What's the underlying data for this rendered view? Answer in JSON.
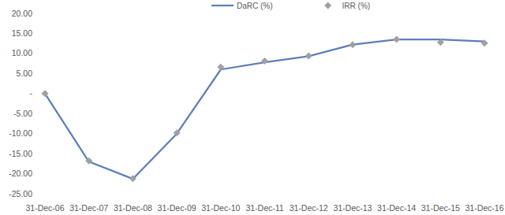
{
  "chart_data": {
    "type": "line",
    "categories": [
      "31-Dec-06",
      "31-Dec-07",
      "31-Dec-08",
      "31-Dec-09",
      "31-Dec-10",
      "31-Dec-11",
      "31-Dec-12",
      "31-Dec-13",
      "31-Dec-14",
      "31-Dec-15",
      "31-Dec-16"
    ],
    "series": [
      {
        "name": "DaRC (%)",
        "color": "#5b7fb9",
        "marker": "none",
        "line_style": "solid",
        "values": [
          0,
          -17.0,
          -21.3,
          -10.0,
          6.0,
          7.8,
          9.3,
          12.2,
          13.5,
          13.5,
          13.0
        ]
      },
      {
        "name": "IRR (%)",
        "color": "#a0a0a0",
        "marker": "diamond",
        "line_style": "none",
        "values": [
          0,
          -16.8,
          -21.2,
          -9.8,
          6.6,
          8.1,
          9.4,
          12.2,
          13.5,
          12.8,
          12.6
        ]
      }
    ],
    "ylim": [
      -25,
      20
    ],
    "yticks": [
      {
        "value": 20,
        "label": "20.00"
      },
      {
        "value": 15,
        "label": "15.00"
      },
      {
        "value": 10,
        "label": "10.00"
      },
      {
        "value": 5,
        "label": "5.00"
      },
      {
        "value": 0,
        "label": "-"
      },
      {
        "value": -5,
        "label": "-5.00"
      },
      {
        "value": -10,
        "label": "-10.00"
      },
      {
        "value": -15,
        "label": "-15.00"
      },
      {
        "value": -20,
        "label": "-20.00"
      },
      {
        "value": -25,
        "label": "-25.00"
      }
    ],
    "grid": false,
    "legend": "top"
  }
}
